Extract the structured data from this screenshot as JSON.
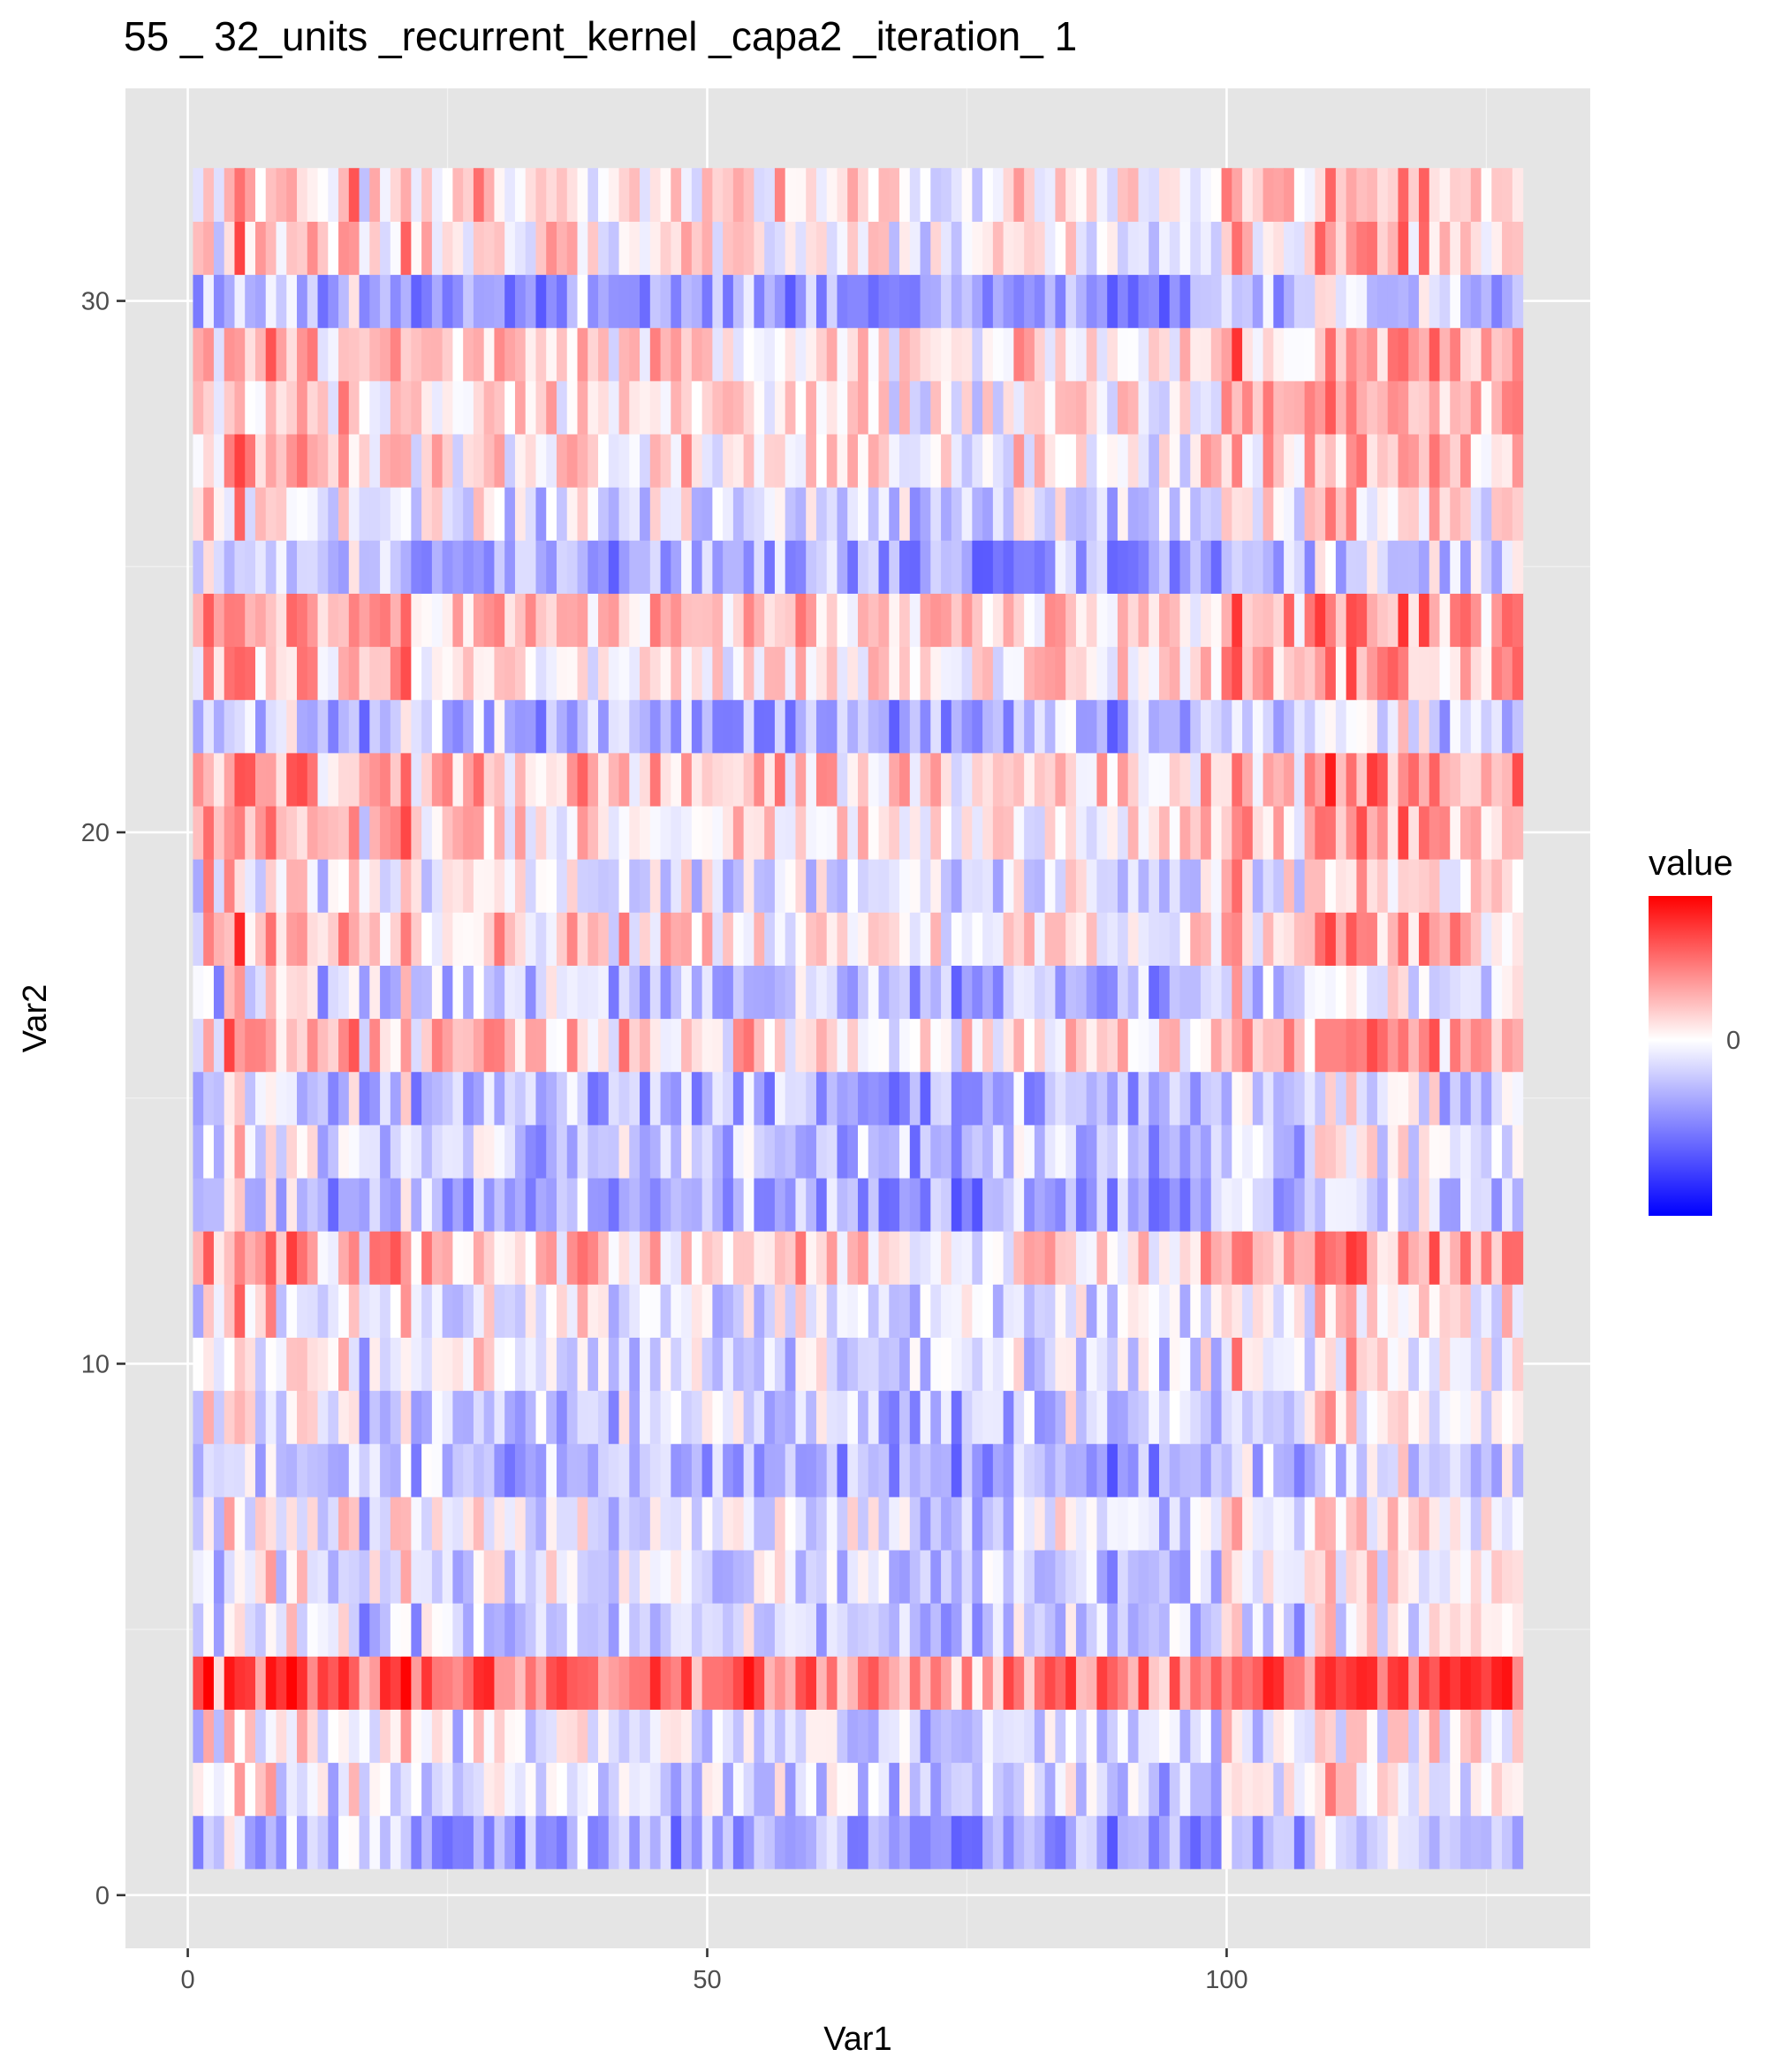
{
  "chart_data": {
    "type": "heatmap",
    "title": "55 _ 32_units _recurrent_kernel _capa2 _iteration_ 1",
    "xlabel": "Var1",
    "ylabel": "Var2",
    "x_range": [
      1,
      128
    ],
    "y_range": [
      1,
      32
    ],
    "xlim": [
      -6,
      135
    ],
    "ylim": [
      -1,
      34
    ],
    "x_ticks": [
      0,
      50,
      100
    ],
    "y_ticks": [
      0,
      10,
      20,
      30
    ],
    "x_tick_labels": [
      "0",
      "50",
      "100"
    ],
    "y_tick_labels": [
      "0",
      "10",
      "20",
      "30"
    ],
    "legend_title": "value",
    "legend_tick_label": "0",
    "color_scale": {
      "low": "#0000ff",
      "mid": "#ffffff",
      "high": "#ff0000",
      "midpoint": 0,
      "min": -0.55,
      "max": 0.45
    },
    "grid": true,
    "panel_background": "#e5e5e5",
    "row_mean_values": [
      -0.17,
      -0.05,
      -0.04,
      0.26,
      -0.09,
      -0.05,
      -0.03,
      -0.13,
      -0.07,
      -0.03,
      -0.02,
      0.12,
      -0.15,
      -0.1,
      -0.13,
      0.1,
      -0.1,
      0.08,
      -0.02,
      0.08,
      0.12,
      -0.13,
      0.08,
      0.12,
      -0.15,
      -0.03,
      0.06,
      0.07,
      0.09,
      -0.16,
      0.05,
      0.08
    ],
    "column_mean_values": [
      -0.02,
      0.06,
      -0.03,
      0.05,
      0.08,
      0.02,
      0.01,
      0.05,
      0.0,
      0.04,
      0.03,
      0.02,
      -0.02,
      -0.02,
      0.03,
      0.04,
      -0.04,
      0.01,
      0.0,
      0.02,
      0.05,
      -0.03,
      0.0,
      0.0,
      -0.01,
      -0.02,
      -0.01,
      0.03,
      0.0,
      0.01,
      -0.03,
      -0.01,
      -0.01,
      -0.03,
      0.01,
      -0.02,
      0.01,
      0.02,
      -0.02,
      0.0,
      -0.03,
      0.01,
      -0.02,
      -0.02,
      0.0,
      -0.01,
      -0.02,
      0.01,
      -0.02,
      -0.01,
      -0.02,
      -0.03,
      -0.01,
      0.01,
      -0.02,
      -0.03,
      0.0,
      -0.03,
      0.0,
      -0.02,
      -0.01,
      0.0,
      -0.03,
      -0.01,
      -0.02,
      -0.02,
      -0.02,
      -0.04,
      -0.02,
      -0.04,
      -0.04,
      -0.03,
      -0.03,
      -0.05,
      -0.03,
      -0.05,
      -0.03,
      -0.03,
      -0.03,
      0.0,
      -0.02,
      -0.02,
      -0.01,
      0.0,
      0.01,
      -0.01,
      -0.02,
      -0.02,
      -0.05,
      -0.02,
      -0.02,
      -0.02,
      -0.04,
      -0.04,
      -0.02,
      -0.03,
      -0.03,
      0.0,
      -0.02,
      0.03,
      0.07,
      0.02,
      -0.01,
      0.02,
      0.0,
      0.01,
      -0.02,
      0.01,
      0.05,
      0.07,
      0.02,
      0.06,
      0.05,
      0.04,
      0.02,
      0.03,
      0.06,
      0.02,
      0.04,
      0.04,
      0.0,
      0.03,
      0.01,
      0.02,
      0.0,
      0.01,
      0.02,
      0.03
    ]
  }
}
